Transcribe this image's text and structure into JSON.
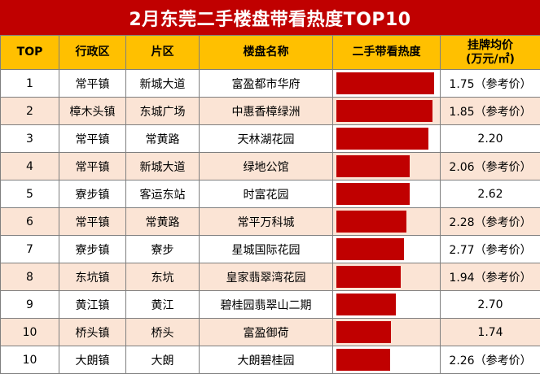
{
  "title": "2月东莞二手楼盘带看热度TOP10",
  "headers": {
    "rank": "TOP",
    "district": "行政区",
    "area": "片区",
    "name": "楼盘名称",
    "heat": "二手带看热度",
    "price_line1": "挂牌均价",
    "price_line2": "(万元/㎡)"
  },
  "rows": [
    {
      "rank": "1",
      "district": "常平镇",
      "area": "新城大道",
      "name": "富盈都市华府",
      "price": "1.75（参考价）"
    },
    {
      "rank": "2",
      "district": "樟木头镇",
      "area": "东城广场",
      "name": "中惠香樟绿洲",
      "price": "1.85（参考价）"
    },
    {
      "rank": "3",
      "district": "常平镇",
      "area": "常黄路",
      "name": "天林湖花园",
      "price": "2.20"
    },
    {
      "rank": "4",
      "district": "常平镇",
      "area": "新城大道",
      "name": "绿地公馆",
      "price": "2.06（参考价）"
    },
    {
      "rank": "5",
      "district": "寮步镇",
      "area": "客运东站",
      "name": "时富花园",
      "price": "2.62"
    },
    {
      "rank": "6",
      "district": "常平镇",
      "area": "常黄路",
      "name": "常平万科城",
      "price": "2.28（参考价）"
    },
    {
      "rank": "7",
      "district": "寮步镇",
      "area": "寮步",
      "name": "星城国际花园",
      "price": "2.77（参考价）"
    },
    {
      "rank": "8",
      "district": "东坑镇",
      "area": "东坑",
      "name": "皇家翡翠湾花园",
      "price": "1.94（参考价）"
    },
    {
      "rank": "9",
      "district": "黄江镇",
      "area": "黄江",
      "name": "碧桂园翡翠山二期",
      "price": "2.70"
    },
    {
      "rank": "10",
      "district": "桥头镇",
      "area": "桥头",
      "name": "富盈御荷",
      "price": "1.74"
    },
    {
      "rank": "10",
      "district": "大朗镇",
      "area": "大朗",
      "name": "大朗碧桂园",
      "price": "2.26（参考价）"
    }
  ],
  "chart_data": {
    "type": "bar",
    "categories": [
      "富盈都市华府",
      "中惠香樟绿洲",
      "天林湖花园",
      "绿地公馆",
      "时富花园",
      "常平万科城",
      "星城国际花园",
      "皇家翡翠湾花园",
      "碧桂园翡翠山二期",
      "富盈御荷",
      "大朗碧桂园"
    ],
    "values": [
      1.0,
      0.98,
      0.94,
      0.75,
      0.75,
      0.72,
      0.69,
      0.66,
      0.61,
      0.56,
      0.55
    ],
    "value_scale": "relative heat, top = 1.0 (bar length relative to longest)",
    "bar_color": "#c00000"
  },
  "colors": {
    "title_bg": "#c00000",
    "header_bg": "#ffc000",
    "alt_row_bg": "#fbe4d5",
    "bar": "#c00000"
  }
}
